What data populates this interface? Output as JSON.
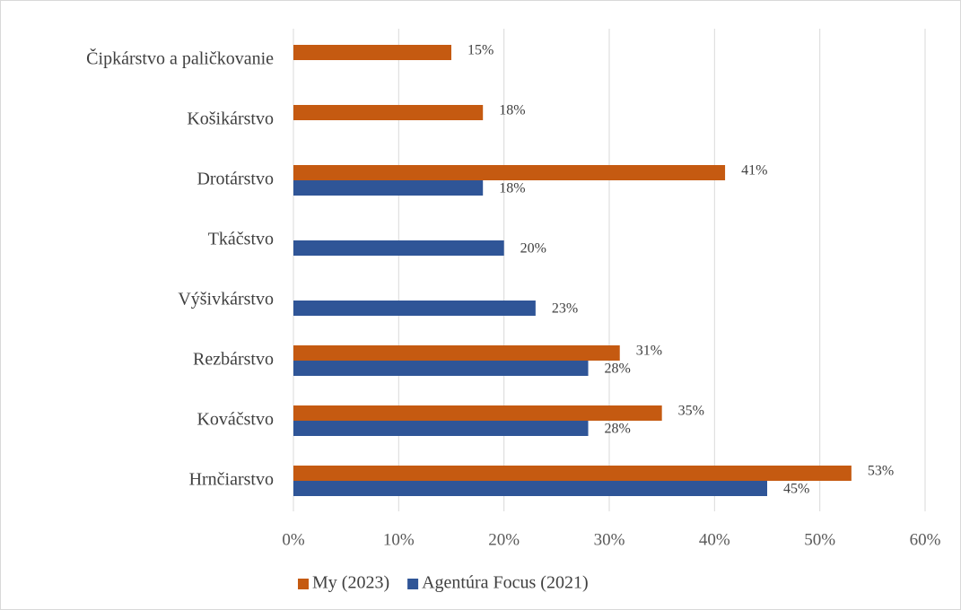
{
  "chart_data": {
    "type": "hbar",
    "categories": [
      "Čipkárstvo a paličkovanie",
      "Košikárstvo",
      "Drotárstvo",
      "Tkáčstvo",
      "Výšivkárstvo",
      "Rezbárstvo",
      "Kováčstvo",
      "Hrnčiarstvo"
    ],
    "series": [
      {
        "name": "My (2023)",
        "color": "#c55a11",
        "values": [
          15,
          18,
          41,
          null,
          null,
          31,
          35,
          53
        ],
        "value_labels": [
          "15%",
          "18%",
          "41%",
          null,
          null,
          "31%",
          "35%",
          "53%"
        ]
      },
      {
        "name": "Agentúra Focus (2021)",
        "color": "#2f5597",
        "values": [
          null,
          null,
          18,
          20,
          23,
          28,
          28,
          45
        ],
        "value_labels": [
          null,
          null,
          "18%",
          "20%",
          "23%",
          "28%",
          "28%",
          "45%"
        ]
      }
    ],
    "xlim": [
      0,
      60
    ],
    "xticks": [
      {
        "value": 0,
        "label": "0%"
      },
      {
        "value": 10,
        "label": "10%"
      },
      {
        "value": 20,
        "label": "20%"
      },
      {
        "value": 30,
        "label": "30%"
      },
      {
        "value": 40,
        "label": "40%"
      },
      {
        "value": 50,
        "label": "50%"
      },
      {
        "value": 60,
        "label": "60%"
      }
    ],
    "grid": true,
    "legend": "bottom"
  }
}
